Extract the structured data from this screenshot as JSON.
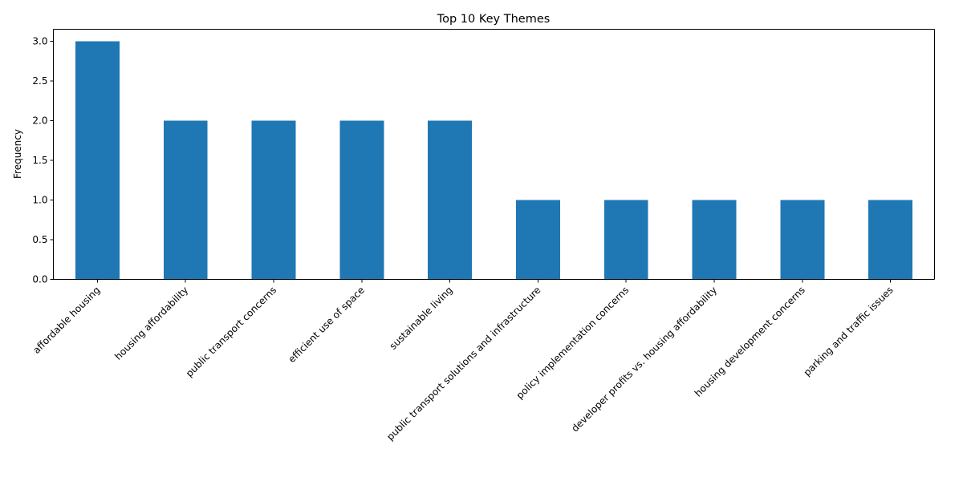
{
  "chart_data": {
    "type": "bar",
    "title": "Top 10 Key Themes",
    "xlabel": "",
    "ylabel": "Frequency",
    "categories": [
      "affordable housing",
      "housing affordability",
      "public transport concerns",
      "efficient use of space",
      "sustainable living",
      "public transport solutions and infrastructure",
      "policy implementation concerns",
      "developer profits vs. housing affordability",
      "housing development concerns",
      "parking and traffic issues"
    ],
    "values": [
      3,
      2,
      2,
      2,
      2,
      1,
      1,
      1,
      1,
      1
    ],
    "ylim": [
      0,
      3.15
    ],
    "yticks": [
      "0.0",
      "0.5",
      "1.0",
      "1.5",
      "2.0",
      "2.5",
      "3.0"
    ],
    "grid": false,
    "colors": {
      "bar": "#1f77b4"
    }
  }
}
